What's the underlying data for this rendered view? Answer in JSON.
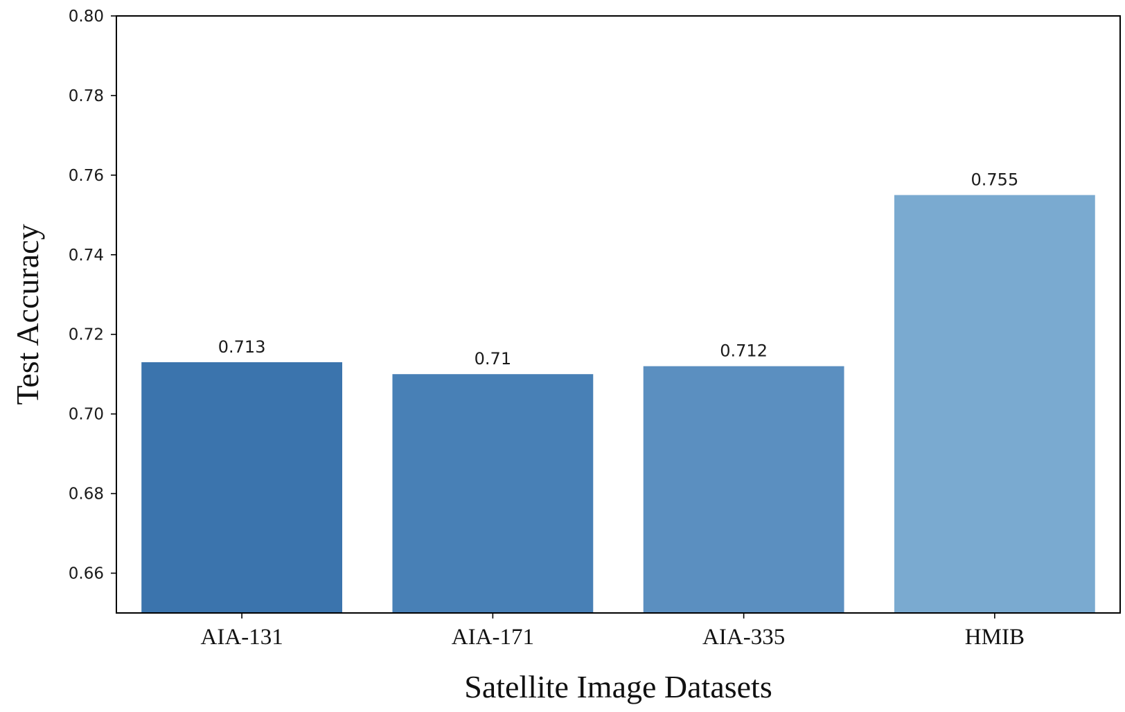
{
  "chart_data": {
    "type": "bar",
    "categories": [
      "AIA-131",
      "AIA-171",
      "AIA-335",
      "HMIB"
    ],
    "values": [
      0.713,
      0.71,
      0.712,
      0.755
    ],
    "value_labels": [
      "0.713",
      "0.71",
      "0.712",
      "0.755"
    ],
    "bar_colors": [
      "#3b74ad",
      "#4880b6",
      "#5b8fc0",
      "#7aaad0"
    ],
    "xlabel": "Satellite Image Datasets",
    "ylabel": "Test Accuracy",
    "ylim": [
      0.65,
      0.8
    ],
    "yticks": [
      0.66,
      0.68,
      0.7,
      0.72,
      0.74,
      0.76,
      0.78,
      0.8
    ],
    "ytick_labels": [
      "0.66",
      "0.68",
      "0.70",
      "0.72",
      "0.74",
      "0.76",
      "0.78",
      "0.80"
    ],
    "grid": false,
    "legend": "none"
  }
}
